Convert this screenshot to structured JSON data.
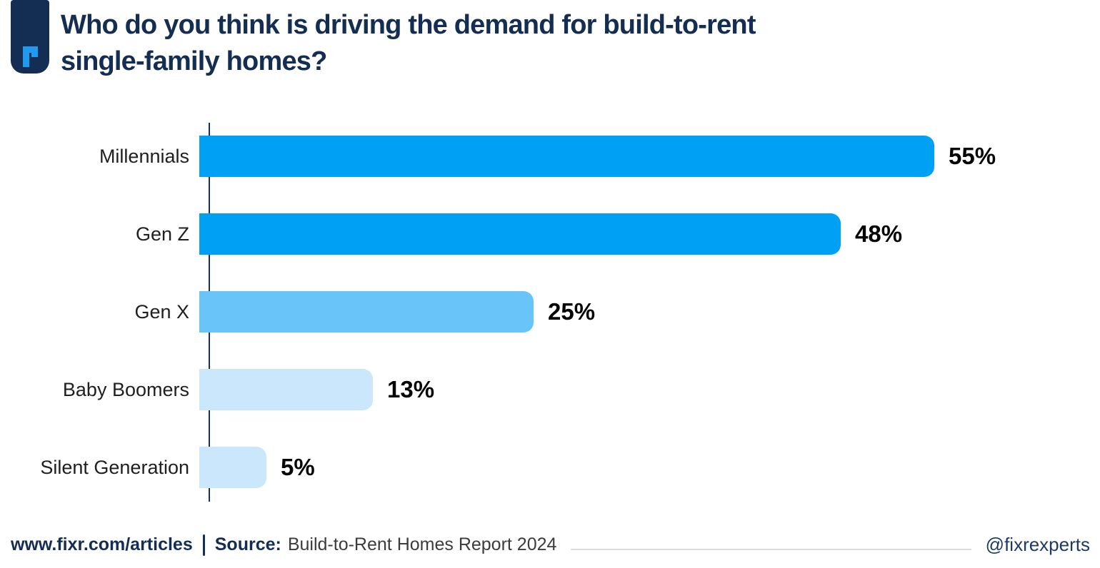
{
  "header": {
    "title_line1": "Who do you think is driving the demand for build-to-rent",
    "title_line2": "single-family homes?",
    "logo_letter": "r"
  },
  "chart_data": {
    "type": "bar",
    "orientation": "horizontal",
    "title": "Who do you think is driving the demand for build-to-rent single-family homes?",
    "categories": [
      "Millennials",
      "Gen Z",
      "Gen X",
      "Baby Boomers",
      "Silent Generation"
    ],
    "values": [
      55,
      48,
      25,
      13,
      5
    ],
    "value_labels": [
      "55%",
      "48%",
      "25%",
      "13%",
      "5%"
    ],
    "unit": "%",
    "xlim": [
      0,
      55
    ],
    "bar_colors": [
      "#00A0F5",
      "#00A0F5",
      "#69C5F9",
      "#CBE7FB",
      "#CBE7FB"
    ],
    "axis_color": "#16335B",
    "grid": false,
    "legend": false,
    "value_label_position": "outside-right"
  },
  "footer": {
    "site_link": "www.fixr.com/articles",
    "separator": "|",
    "source_label": "Source:",
    "source_text": "Build-to-Rent Homes Report 2024",
    "handle": "@fixrexperts"
  },
  "colors": {
    "navy": "#132E52",
    "accent_blue": "#00A0F5",
    "mid_blue": "#69C5F9",
    "pale_blue": "#CBE7FB",
    "logo_glyph_blue": "#1E9BF0",
    "divider_gray": "#DCDCDC"
  }
}
